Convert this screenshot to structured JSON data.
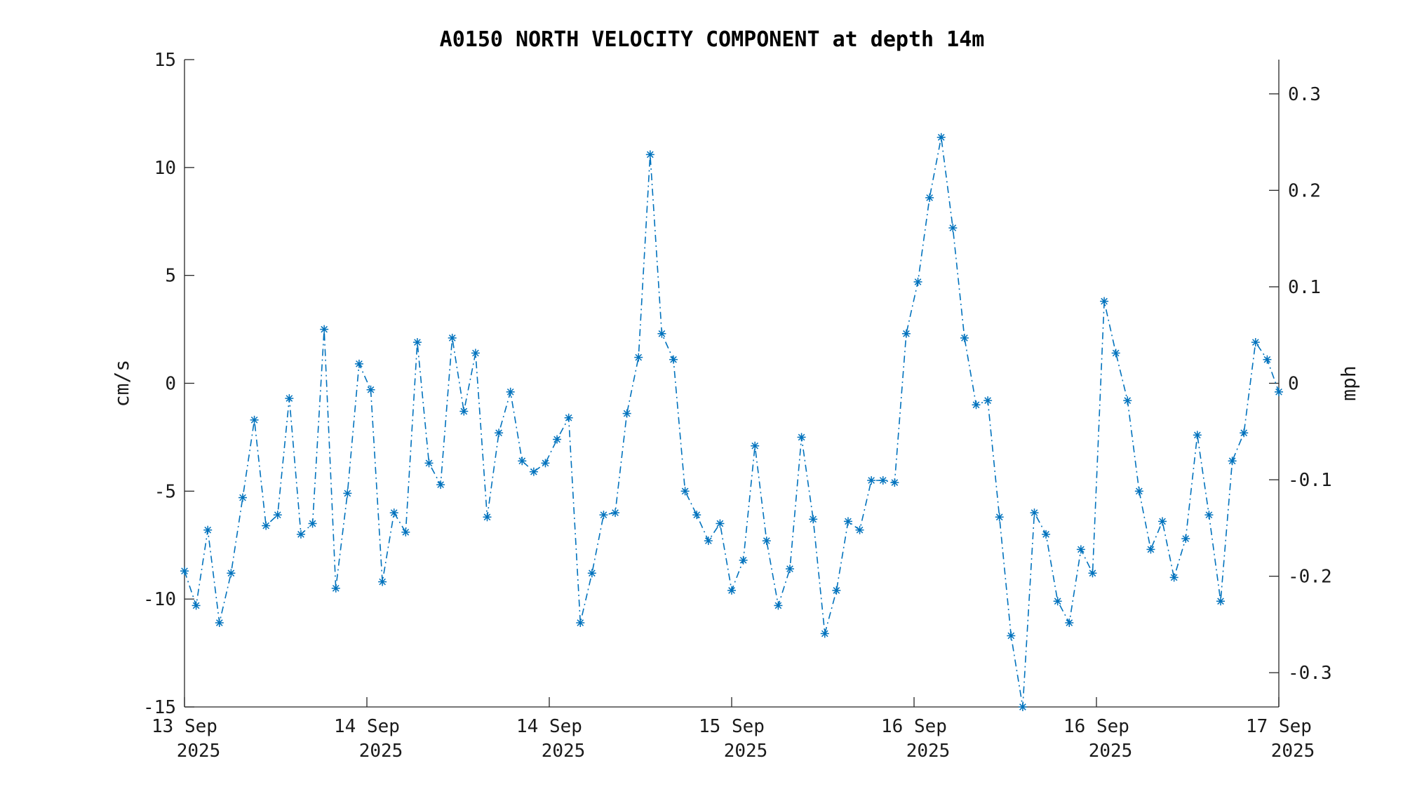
{
  "chart_data": {
    "type": "line",
    "title": "A0150 NORTH VELOCITY COMPONENT at depth 14m",
    "ylabel": "cm/s",
    "ylabel_right": "mph",
    "ylim": [
      -15,
      15
    ],
    "ylim_right": [
      -0.3355,
      0.3355
    ],
    "yticks": [
      "15",
      "10",
      "5",
      "0",
      "-5",
      "-10",
      "-15"
    ],
    "yticks_right": [
      "0.3",
      "0.2",
      "0.1",
      "0",
      "-0.1",
      "-0.2",
      "-0.3"
    ],
    "xticks": [
      {
        "day": "13 Sep",
        "year": "2025"
      },
      {
        "day": "14 Sep",
        "year": "2025"
      },
      {
        "day": "14 Sep",
        "year": "2025"
      },
      {
        "day": "15 Sep",
        "year": "2025"
      },
      {
        "day": "16 Sep",
        "year": "2025"
      },
      {
        "day": "16 Sep",
        "year": "2025"
      },
      {
        "day": "17 Sep",
        "year": "2025"
      }
    ],
    "grid": false,
    "marker": "asterisk",
    "line_style": "dash-dot",
    "color": "#0072bd",
    "series": [
      {
        "values": [
          -8.7,
          -10.3,
          -6.8,
          -11.1,
          -8.8,
          -5.3,
          -1.7,
          -6.6,
          -6.1,
          -0.7,
          -7.0,
          -6.5,
          2.5,
          -9.5,
          -5.1,
          0.9,
          -0.3,
          -9.2,
          -6.0,
          -6.9,
          1.9,
          -3.7,
          -4.7,
          2.1,
          -1.3,
          1.4,
          -6.2,
          -2.3,
          -0.4,
          -3.6,
          -4.1,
          -3.7,
          -2.6,
          -1.6,
          -11.1,
          -8.8,
          -6.1,
          -6.0,
          -1.4,
          1.2,
          10.6,
          2.3,
          1.1,
          -5.0,
          -6.1,
          -7.3,
          -6.5,
          -9.6,
          -8.2,
          -2.9,
          -7.3,
          -10.3,
          -8.6,
          -2.5,
          -6.3,
          -11.6,
          -9.6,
          -6.4,
          -6.8,
          -4.5,
          -4.5,
          -4.6,
          2.3,
          4.7,
          8.6,
          11.4,
          7.2,
          2.1,
          -1.0,
          -0.8,
          -6.2,
          -11.7,
          -15.0,
          -6.0,
          -7.0,
          -10.1,
          -11.1,
          -7.7,
          -8.8,
          3.8,
          1.4,
          -0.8,
          -5.0,
          -7.7,
          -6.4,
          -9.0,
          -7.2,
          -2.4,
          -6.1,
          -10.1,
          -3.6,
          -2.3,
          1.9,
          1.1,
          -0.4
        ]
      }
    ]
  }
}
